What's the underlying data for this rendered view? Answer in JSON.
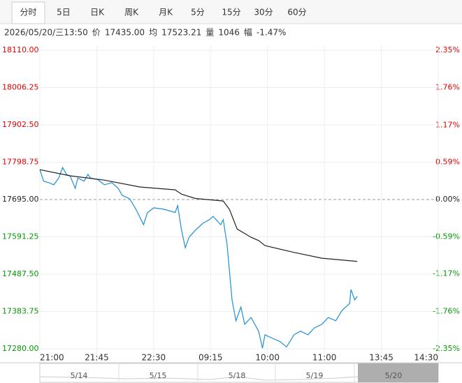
{
  "tabs": [
    "分时",
    "5日",
    "日K",
    "周K",
    "月K",
    "5分",
    "15分",
    "30分",
    "60分"
  ],
  "info": {
    "date": "2026/05/20/三13:50",
    "items": [
      {
        "label": "价",
        "value": "17435.00"
      },
      {
        "label": "均",
        "value": "17523.21"
      },
      {
        "label": "量",
        "value": "1046"
      },
      {
        "label": "幅",
        "value": "-1.47%"
      }
    ]
  },
  "navigator": [
    "5/14",
    "5/15",
    "5/18",
    "5/19",
    "5/20"
  ],
  "chart_data": {
    "type": "line",
    "xlim": [
      0,
      315
    ],
    "xticks": [
      {
        "value": 0,
        "label": "21:00"
      },
      {
        "value": 45,
        "label": "21:45"
      },
      {
        "value": 90,
        "label": "22:30"
      },
      {
        "value": 135,
        "label": "09:15"
      },
      {
        "value": 180,
        "label": "10:00"
      },
      {
        "value": 225,
        "label": "11:00"
      },
      {
        "value": 270,
        "label": "13:45"
      },
      {
        "value": 315,
        "label": "14:30"
      }
    ],
    "ylim": [
      17280,
      18110
    ],
    "yticks": [
      {
        "value": 18110,
        "label": "18110.00"
      },
      {
        "value": 18006.25,
        "label": "18006.25"
      },
      {
        "value": 17902.5,
        "label": "17902.50"
      },
      {
        "value": 17798.75,
        "label": "17798.75"
      },
      {
        "value": 17695,
        "label": "17695.00"
      },
      {
        "value": 17591.25,
        "label": "17591.25"
      },
      {
        "value": 17487.5,
        "label": "17487.50"
      },
      {
        "value": 17383.75,
        "label": "17383.75"
      },
      {
        "value": 17280,
        "label": "17280.00"
      }
    ],
    "y2lim": [
      -2.35,
      2.35
    ],
    "y2ticks": [
      {
        "value": 2.35,
        "label": "2.35%"
      },
      {
        "value": 1.76,
        "label": "1.76%"
      },
      {
        "value": 1.17,
        "label": "1.17%"
      },
      {
        "value": 0.59,
        "label": "0.59%"
      },
      {
        "value": 0,
        "label": "0.00%"
      },
      {
        "value": -0.59,
        "label": "-0.59%"
      },
      {
        "value": -1.17,
        "label": "-1.17%"
      },
      {
        "value": -1.76,
        "label": "-1.76%"
      },
      {
        "value": -2.35,
        "label": "-2.35%"
      }
    ],
    "baseline": 17695,
    "grid": true,
    "series": [
      {
        "name": "价",
        "color": "#1f8fd4",
        "x": [
          0,
          3,
          7,
          11,
          15,
          18,
          21,
          24,
          28,
          30,
          35,
          38,
          40,
          46,
          51,
          57,
          62,
          65,
          71,
          76,
          82,
          85,
          90,
          98,
          107,
          109,
          112,
          115,
          118,
          123,
          129,
          134,
          137,
          143,
          145,
          148,
          152,
          155,
          159,
          162,
          167,
          173,
          176,
          178,
          184,
          190,
          195,
          201,
          206,
          212,
          217,
          223,
          228,
          234,
          239,
          245,
          246,
          249,
          251
        ],
        "values": [
          17778,
          17746,
          17742,
          17736,
          17755,
          17784,
          17765,
          17760,
          17726,
          17755,
          17746,
          17765,
          17755,
          17750,
          17736,
          17742,
          17726,
          17707,
          17697,
          17668,
          17625,
          17658,
          17672,
          17668,
          17659,
          17678,
          17610,
          17561,
          17590,
          17610,
          17629,
          17639,
          17648,
          17625,
          17639,
          17571,
          17416,
          17358,
          17396,
          17348,
          17367,
          17329,
          17282,
          17319,
          17309,
          17300,
          17285,
          17319,
          17329,
          17319,
          17338,
          17348,
          17367,
          17358,
          17387,
          17406,
          17445,
          17416,
          17426
        ]
      },
      {
        "name": "均",
        "color": "#222222",
        "x": [
          0,
          24,
          51,
          79,
          107,
          112,
          123,
          145,
          150,
          156,
          167,
          173,
          178,
          201,
          223,
          251
        ],
        "values": [
          17778,
          17761,
          17749,
          17730,
          17722,
          17710,
          17698,
          17691,
          17667,
          17613,
          17590,
          17581,
          17567,
          17548,
          17532,
          17523
        ]
      }
    ]
  }
}
